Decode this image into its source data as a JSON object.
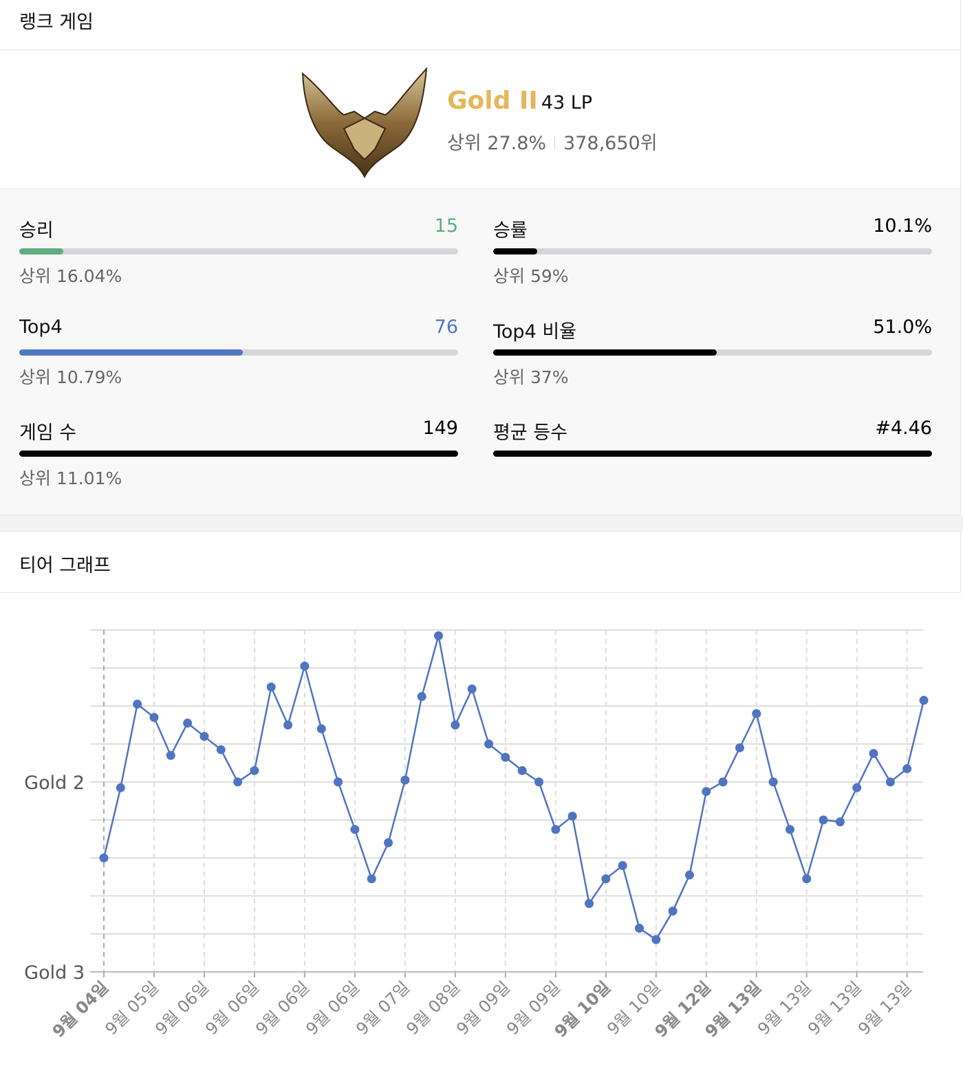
{
  "header": {
    "title": "랭크 게임"
  },
  "tier": {
    "name": "Gold II",
    "lp": "43 LP",
    "top_percent": "상위 27.8%",
    "rank": "378,650위"
  },
  "stats": [
    {
      "label": "승리",
      "value": "15",
      "sub": "상위 16.04%",
      "bar_percent": 10.1,
      "color": "#5dad80"
    },
    {
      "label": "승률",
      "value": "10.1%",
      "sub": "상위 59%",
      "bar_percent": 10.1,
      "color": "#000000"
    },
    {
      "label": "Top4",
      "value": "76",
      "sub": "상위 10.79%",
      "bar_percent": 51,
      "color": "#4f78c4"
    },
    {
      "label": "Top4 비율",
      "value": "51.0%",
      "sub": "상위 37%",
      "bar_percent": 51,
      "color": "#000000"
    },
    {
      "label": "게임 수",
      "value": "149",
      "sub": "상위 11.01%",
      "bar_percent": 100,
      "color": "#000000"
    },
    {
      "label": "평균 등수",
      "value": "#4.46",
      "bar_percent": 100,
      "color": "#000000"
    }
  ],
  "graph_section": {
    "title": "티어 그래프"
  },
  "chart_data": {
    "type": "line",
    "categories": [
      "9월 04일",
      null,
      null,
      "9월 05일",
      null,
      null,
      "9월 06일",
      null,
      null,
      "9월 06일",
      null,
      null,
      "9월 06일",
      null,
      null,
      "9월 06일",
      null,
      null,
      "9월 07일",
      null,
      null,
      "9월 08일",
      null,
      null,
      "9월 09일",
      null,
      null,
      "9월 09일",
      null,
      null,
      "9월 10일",
      null,
      null,
      "9월 10일",
      null,
      null,
      "9월 12일",
      null,
      null,
      "9월 13일",
      null,
      null,
      "9월 13일",
      null,
      null,
      "9월 13일",
      null,
      null,
      "9월 13일",
      null
    ],
    "bold_categories": [
      0,
      30,
      36,
      39
    ],
    "series": [
      {
        "color": "#4f74c0",
        "values": [
          60,
          97,
          141,
          134,
          114,
          131,
          124,
          117,
          100,
          106,
          150,
          130,
          161,
          128,
          100,
          75,
          49,
          68,
          101,
          145,
          177,
          130,
          149,
          120,
          113,
          106,
          100,
          75,
          82,
          36,
          49,
          56,
          23,
          17,
          32,
          51,
          95,
          100,
          118,
          136,
          100,
          75,
          49,
          80,
          79,
          97,
          115,
          100,
          107,
          143
        ]
      }
    ],
    "ylim": [
      0,
      180
    ],
    "yticks": [
      {
        "value": 0,
        "label": "Gold 3"
      },
      {
        "value": 100,
        "label": "Gold 2"
      }
    ],
    "ygrid": [
      0,
      20,
      40,
      60,
      80,
      100,
      120,
      140,
      160,
      180
    ],
    "grid": true
  }
}
